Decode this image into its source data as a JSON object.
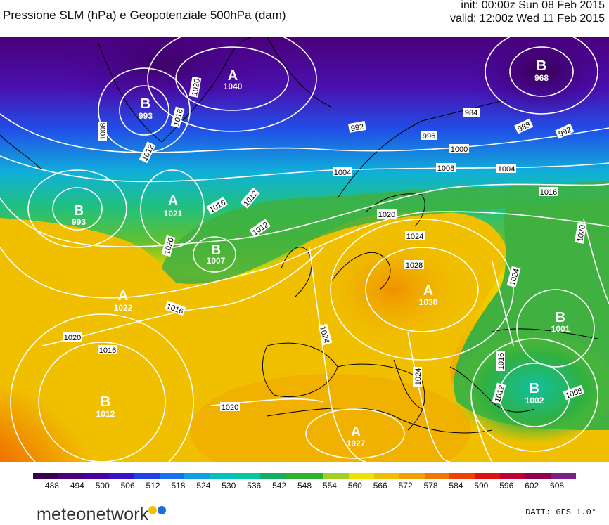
{
  "header": {
    "title": "Pressione SLM (hPa) e Geopotenziale 500hPa (dam)",
    "init": "init: 00:00z Sun 08 Feb 2015",
    "valid": "valid: 12:00z Wed 11 Feb 2015"
  },
  "pressure_centers": [
    {
      "letter": "A",
      "value": "1040"
    },
    {
      "letter": "B",
      "value": "993"
    },
    {
      "letter": "B",
      "value": "968"
    },
    {
      "letter": "B",
      "value": "993"
    },
    {
      "letter": "A",
      "value": "1021"
    },
    {
      "letter": "B",
      "value": "1007"
    },
    {
      "letter": "A",
      "value": "1022"
    },
    {
      "letter": "B",
      "value": "1012"
    },
    {
      "letter": "A",
      "value": "1030"
    },
    {
      "letter": "B",
      "value": "1001"
    },
    {
      "letter": "B",
      "value": "1002"
    },
    {
      "letter": "A",
      "value": "1027"
    }
  ],
  "isobar_labels": [
    "1008",
    "1020",
    "1016",
    "1012",
    "1004",
    "992",
    "984",
    "988",
    "992",
    "996",
    "1000",
    "1008",
    "1004",
    "1016",
    "1012",
    "1016",
    "1012",
    "1020",
    "1024",
    "1028",
    "1020",
    "1016",
    "1020",
    "1024",
    "1024",
    "1016",
    "1020",
    "1024",
    "1016",
    "1020",
    "1012",
    "1008"
  ],
  "colorbar": {
    "labels": [
      "488",
      "494",
      "500",
      "506",
      "512",
      "518",
      "524",
      "530",
      "536",
      "542",
      "548",
      "554",
      "560",
      "566",
      "572",
      "578",
      "584",
      "590",
      "596",
      "602",
      "608"
    ],
    "colors": [
      "#3a0050",
      "#4b0078",
      "#4a00a0",
      "#3a10c8",
      "#2040e8",
      "#1a70f0",
      "#10a0e0",
      "#00c0c0",
      "#00c8a0",
      "#10b060",
      "#30b030",
      "#a0d020",
      "#f0e000",
      "#f0c000",
      "#f0a000",
      "#f07800",
      "#f04000",
      "#e01010",
      "#c00030",
      "#900050",
      "#7a1f8a"
    ]
  },
  "footer": {
    "brand": "meteonetwork",
    "source": "DATI: GFS 1.0°",
    "dot_colors": [
      "#f2c400",
      "#1a6fe0"
    ]
  }
}
